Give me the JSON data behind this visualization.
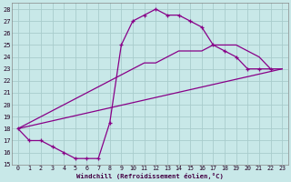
{
  "bg_color": "#c8e8e8",
  "grid_color": "#a8cccc",
  "line_color": "#880088",
  "xlabel": "Windchill (Refroidissement éolien,°C)",
  "xlim": [
    -0.5,
    23.5
  ],
  "ylim": [
    15,
    28.5
  ],
  "xticks": [
    0,
    1,
    2,
    3,
    4,
    5,
    6,
    7,
    8,
    9,
    10,
    11,
    12,
    13,
    14,
    15,
    16,
    17,
    18,
    19,
    20,
    21,
    22,
    23
  ],
  "yticks": [
    15,
    16,
    17,
    18,
    19,
    20,
    21,
    22,
    23,
    24,
    25,
    26,
    27,
    28
  ],
  "curve_main": {
    "x": [
      0,
      1,
      2,
      3,
      4,
      5,
      6,
      7,
      8,
      9,
      10,
      11,
      12,
      13,
      14,
      15,
      16,
      17,
      18,
      19,
      20,
      21,
      22
    ],
    "y": [
      18,
      17,
      17,
      16.5,
      16,
      15.5,
      15.5,
      15.5,
      18.5,
      25,
      27,
      27.5,
      28,
      27.5,
      27.5,
      27,
      26.5,
      25,
      24.5,
      24,
      23,
      23,
      23
    ]
  },
  "curve_upper": {
    "x": [
      0,
      1,
      2,
      3,
      4,
      5,
      6,
      7,
      8,
      9,
      10,
      11,
      12,
      13,
      14,
      15,
      16,
      17,
      18,
      19,
      20,
      21,
      22,
      23
    ],
    "y": [
      18,
      18.5,
      19,
      19.5,
      20,
      20.5,
      21,
      21.5,
      22,
      22.5,
      23,
      23.5,
      23.5,
      24,
      24.5,
      24.5,
      24.5,
      25,
      25,
      25,
      24.5,
      24,
      23,
      23
    ]
  },
  "curve_lower": {
    "x": [
      0,
      23
    ],
    "y": [
      18,
      23
    ]
  }
}
